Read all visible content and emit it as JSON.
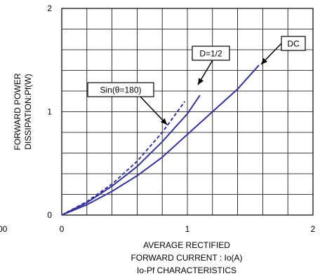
{
  "chart_data": {
    "type": "line",
    "title": "Io-Pf CHARACTERISTICS",
    "xlabel_lines": [
      "AVERAGE RECTIFIED",
      "FORWARD CURRENT : Io(A)"
    ],
    "ylabel_lines": [
      "FORWARD POWER",
      "DISSIPATION:Pf(W)"
    ],
    "xlim": [
      0,
      2
    ],
    "ylim": [
      0,
      2
    ],
    "x_tick_labels": [
      "0",
      "1",
      "2"
    ],
    "y_tick_labels": [
      "0",
      "1",
      "2"
    ],
    "stray_label": "00",
    "grid": true,
    "line_color": "#333399",
    "series": [
      {
        "name": "DC",
        "style": "solid",
        "points": [
          [
            0,
            0
          ],
          [
            0.2,
            0.1
          ],
          [
            0.4,
            0.23
          ],
          [
            0.6,
            0.38
          ],
          [
            0.8,
            0.56
          ],
          [
            1.0,
            0.78
          ],
          [
            1.2,
            1.0
          ],
          [
            1.4,
            1.22
          ],
          [
            1.57,
            1.45
          ]
        ]
      },
      {
        "name": "D=1/2",
        "style": "solid",
        "points": [
          [
            0,
            0
          ],
          [
            0.2,
            0.12
          ],
          [
            0.4,
            0.28
          ],
          [
            0.6,
            0.47
          ],
          [
            0.8,
            0.71
          ],
          [
            1.0,
            0.98
          ],
          [
            1.1,
            1.16
          ]
        ]
      },
      {
        "name": "Sin(θ=180)",
        "style": "dashed",
        "points": [
          [
            0,
            0
          ],
          [
            0.2,
            0.13
          ],
          [
            0.4,
            0.3
          ],
          [
            0.6,
            0.52
          ],
          [
            0.8,
            0.8
          ],
          [
            0.98,
            1.1
          ]
        ]
      }
    ],
    "annotations": [
      {
        "label": "DC",
        "series": "DC"
      },
      {
        "label": "D=1/2",
        "series": "D=1/2"
      },
      {
        "label": "Sin(θ=180)",
        "series": "Sin(θ=180)"
      }
    ]
  }
}
